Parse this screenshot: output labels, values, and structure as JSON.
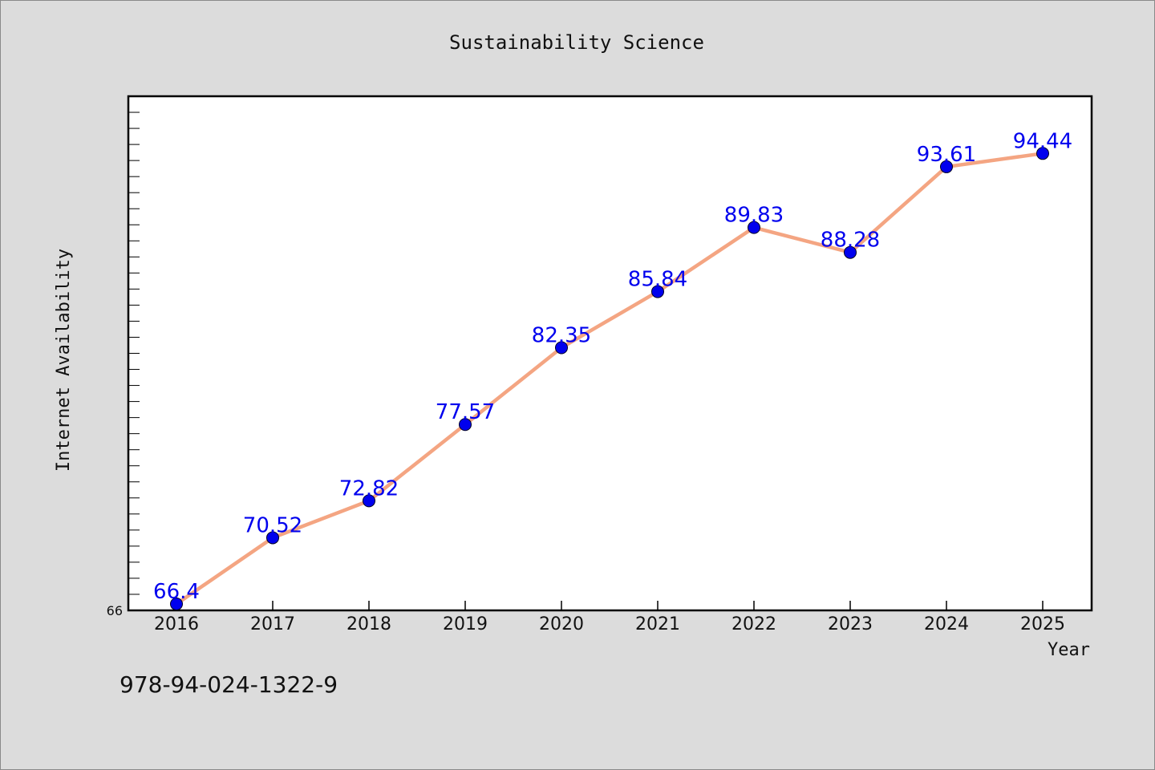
{
  "chart_data": {
    "type": "line",
    "title": "Sustainability Science",
    "xlabel": "Year",
    "ylabel": "Internet Availability",
    "categories": [
      "2016",
      "2017",
      "2018",
      "2019",
      "2020",
      "2021",
      "2022",
      "2023",
      "2024",
      "2025"
    ],
    "series": [
      {
        "values": [
          66.4,
          70.52,
          72.82,
          77.57,
          82.35,
          85.84,
          89.83,
          88.28,
          93.61,
          94.44
        ],
        "labels": [
          "66.4",
          "70.52",
          "72.82",
          "77.57",
          "82.35",
          "85.84",
          "89.83",
          "88.28",
          "93.61",
          "94.44"
        ]
      }
    ],
    "ylim": [
      66,
      98
    ],
    "yticks_labeled": [
      "66"
    ],
    "grid": false,
    "legend": "none",
    "colors": {
      "line": "#f4a582",
      "marker": "#0000ee",
      "data_label": "#0000ee",
      "plot_background": "#ffffff",
      "figure_background": "#dcdcdc"
    }
  },
  "footer": {
    "isbn": "978-94-024-1322-9"
  }
}
